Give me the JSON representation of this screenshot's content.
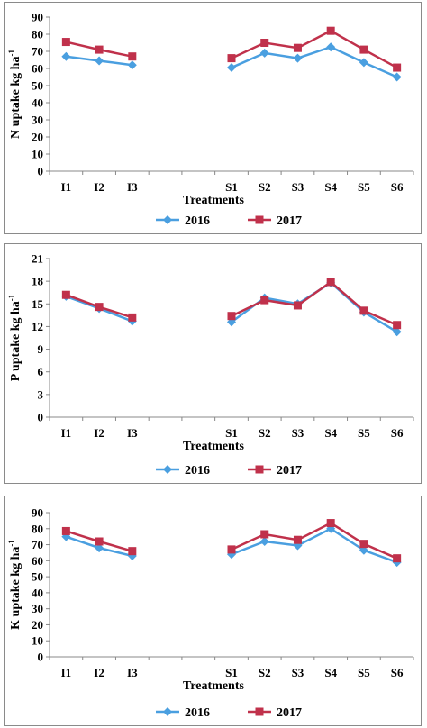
{
  "series_styles": [
    {
      "name": "2016",
      "color": "#4a9fe0",
      "marker": "diamond"
    },
    {
      "name": "2017",
      "color": "#c0314b",
      "marker": "square"
    }
  ],
  "chart_data": [
    {
      "type": "line",
      "ylabel": "N uptake kg ha-1",
      "xlabel": "Treatments",
      "ylim": [
        0,
        90
      ],
      "ytick_step": 10,
      "yticks": [
        "0",
        "10",
        "20",
        "30",
        "40",
        "50",
        "60",
        "70",
        "80",
        "90"
      ],
      "categories": [
        "I1",
        "I2",
        "I3",
        "",
        "",
        "S1",
        "S2",
        "S3",
        "S4",
        "S5",
        "S6"
      ],
      "series": [
        {
          "name": "2016",
          "values": [
            67,
            64.5,
            62,
            null,
            null,
            60.5,
            69,
            66,
            72.5,
            63.5,
            55
          ]
        },
        {
          "name": "2017",
          "values": [
            75.5,
            71,
            67,
            null,
            null,
            66,
            75,
            72,
            82,
            71,
            60.5
          ]
        }
      ],
      "legend": "bottom"
    },
    {
      "type": "line",
      "ylabel": "P uptake kg ha-1",
      "xlabel": "Treatments",
      "ylim": [
        0,
        21
      ],
      "ytick_step": 3,
      "yticks": [
        "0",
        "3",
        "6",
        "9",
        "12",
        "15",
        "18",
        "21"
      ],
      "categories": [
        "I1",
        "I2",
        "I3",
        "",
        "",
        "S1",
        "S2",
        "S3",
        "S4",
        "S5",
        "S6"
      ],
      "series": [
        {
          "name": "2016",
          "values": [
            16,
            14.4,
            12.7,
            null,
            null,
            12.6,
            15.8,
            15,
            17.8,
            13.9,
            11.3
          ]
        },
        {
          "name": "2017",
          "values": [
            16.2,
            14.6,
            13.2,
            null,
            null,
            13.4,
            15.5,
            14.8,
            17.9,
            14.1,
            12.2
          ]
        }
      ],
      "legend": "bottom"
    },
    {
      "type": "line",
      "ylabel": "K uptake kg ha-1",
      "xlabel": "Treatments",
      "ylim": [
        0,
        90
      ],
      "ytick_step": 10,
      "yticks": [
        "0",
        "10",
        "20",
        "30",
        "40",
        "50",
        "60",
        "70",
        "80",
        "90"
      ],
      "categories": [
        "I1",
        "I2",
        "I3",
        "",
        "",
        "S1",
        "S2",
        "S3",
        "S4",
        "S5",
        "S6"
      ],
      "series": [
        {
          "name": "2016",
          "values": [
            75,
            68,
            63,
            null,
            null,
            64,
            72,
            69.5,
            80,
            66.5,
            59
          ]
        },
        {
          "name": "2017",
          "values": [
            78.5,
            72,
            66,
            null,
            null,
            67,
            76.5,
            73,
            83.5,
            70.5,
            61.5
          ]
        }
      ],
      "legend": "bottom"
    }
  ]
}
